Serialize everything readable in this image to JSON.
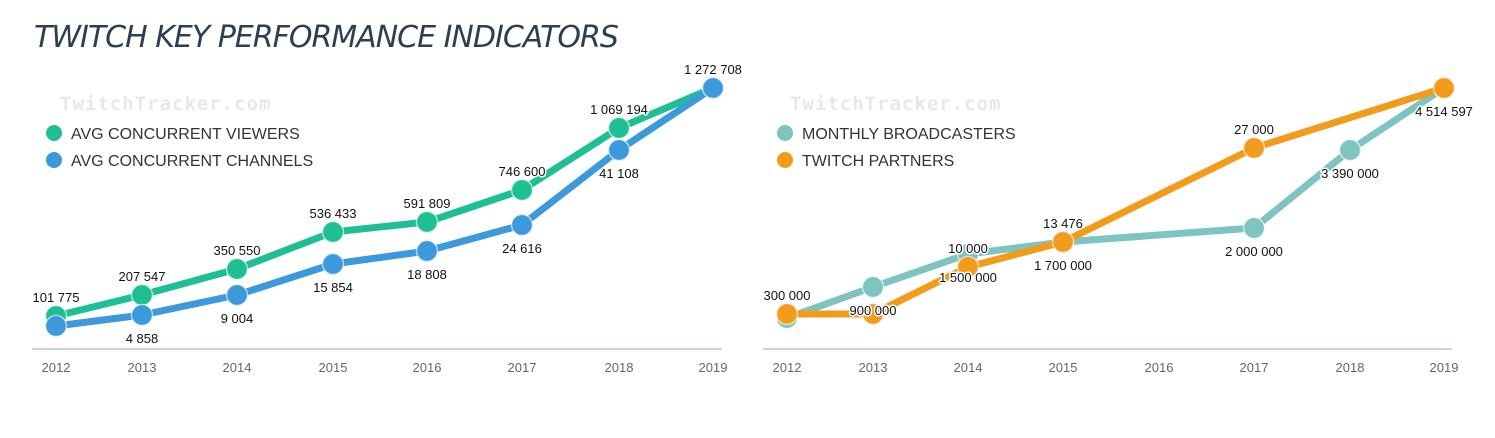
{
  "page": {
    "title": "TWITCH KEY PERFORMANCE INDICATORS"
  },
  "watermark": "TwitchTracker.com",
  "chart_data": [
    {
      "type": "line",
      "x": [
        "2012",
        "2013",
        "2014",
        "2015",
        "2016",
        "2017",
        "2018",
        "2019"
      ],
      "ylim": [
        0,
        1300000
      ],
      "legend": "top-left",
      "grid": false,
      "series": [
        {
          "name": "AVG CONCURRENT VIEWERS",
          "color": "#1fbf95",
          "values": [
            101775,
            207547,
            350550,
            536433,
            591809,
            746600,
            1069194,
            1272708
          ],
          "labels": [
            "101 775",
            "207 547",
            "350 550",
            "536 433",
            "591 809",
            "746 600",
            "1 069 194",
            "1 272 708"
          ],
          "label_pos": "above"
        },
        {
          "name": "AVG CONCURRENT CHANNELS",
          "color": "#3b99dc",
          "values": [
            2000,
            4858,
            9004,
            15854,
            18808,
            24616,
            41108,
            57000
          ],
          "labels": [
            "",
            "4 858",
            "9 004",
            "15 854",
            "18 808",
            "24 616",
            "41 108",
            ""
          ],
          "label_pos": "below"
        }
      ]
    },
    {
      "type": "line",
      "x": [
        "2012",
        "2013",
        "2014",
        "2015",
        "2016",
        "2017",
        "2018",
        "2019"
      ],
      "legend": "top-left",
      "grid": false,
      "series": [
        {
          "name": "MONTHLY BROADCASTERS",
          "color": "#7ec4c1",
          "x": [
            "2012",
            "2013",
            "2014",
            "2015",
            "2017",
            "2018",
            "2019"
          ],
          "values": [
            100000,
            900000,
            1500000,
            1700000,
            2000000,
            3390000,
            4514597
          ],
          "labels": [
            "",
            "900 000",
            "1 500 000",
            "1 700 000",
            "2 000 000",
            "3 390 000",
            "4 514 597"
          ],
          "label_pos": "below"
        },
        {
          "name": "TWITCH PARTNERS",
          "color": "#f39c1c",
          "x": [
            "2012",
            "2013",
            "2014",
            "2015",
            "2017",
            "2019"
          ],
          "values": [
            300000,
            300000,
            10000,
            13476,
            27000,
            34000
          ],
          "labels": [
            "300 000",
            "",
            "10 000",
            "13 476",
            "27 000",
            ""
          ],
          "label_pos": "above"
        }
      ]
    }
  ]
}
